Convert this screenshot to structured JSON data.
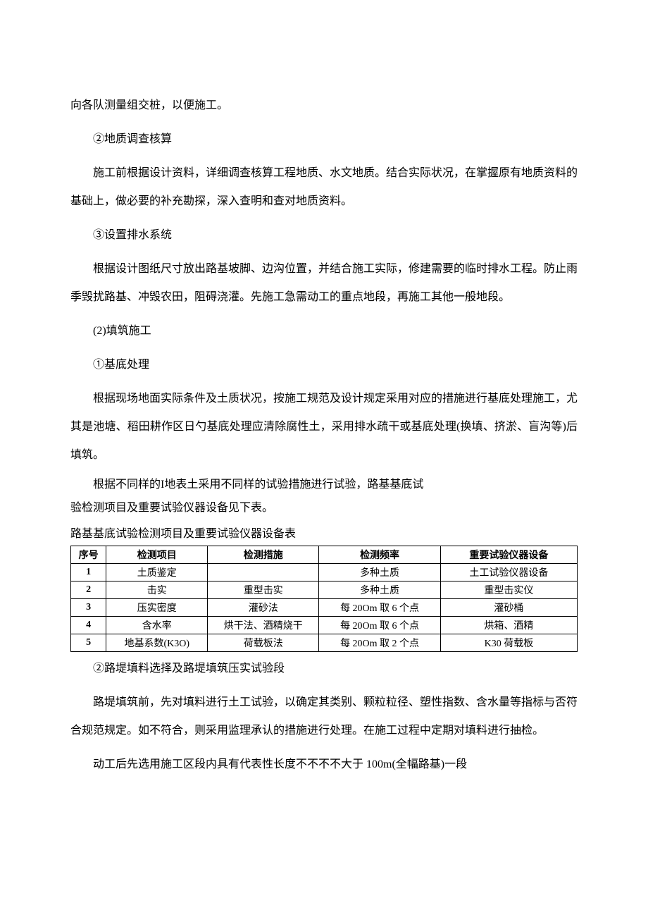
{
  "paragraphs": {
    "p1": "向各队测量组交桩，以便施工。",
    "p2": "②地质调查核算",
    "p3": "施工前根据设计资料，详细调查核算工程地质、水文地质。结合实际状况，在掌握原有地质资料的基础上，做必要的补充勘探，深入查明和查对地质资料。",
    "p4": "③设置排水系统",
    "p5": "根据设计图纸尺寸放出路基坡脚、边沟位置，并结合施工实际，修建需要的临时排水工程。防止雨季毁扰路基、冲毁农田，阻碍浇灌。先施工急需动工的重点地段，再施工其他一般地段。",
    "p6": "(2)填筑施工",
    "p7": "①基底处理",
    "p8": "根据现场地面实际条件及土质状况，按施工规范及设计规定采用对应的措施进行基底处理施工，尤其是池塘、稻田耕作区日勺基底处理应清除腐性土，采用排水疏干或基底处理(换填、挤淤、盲沟等)后填筑。",
    "p9a": "根据不同样的I地表土采用不同样的试验措施进行试验，路基基底试",
    "p9b": "验检测项目及重要试验仪器设备见下表。",
    "table_title": "路基基底试验检测项目及重要试验仪器设备表",
    "p10": "②路堤填料选择及路堤填筑压实试验段",
    "p11": "路堤填筑前，先对填料进行土工试验，以确定其类别、颗粒粒径、塑性指数、含水量等指标与否符合规范规定。如不符合，则采用监理承认的措施进行处理。在施工过程中定期对填料进行抽检。",
    "p12": "动工后先选用施工区段内具有代表性长度不不不不大于 100m(全幅路基)一段"
  },
  "table": {
    "headers": {
      "seq": "序号",
      "item": "检测项目",
      "method": "检测措施",
      "freq": "检测频率",
      "equip": "重要试验仪器设备"
    },
    "rows": [
      {
        "seq": "1",
        "item": "土质鉴定",
        "method": "",
        "freq": "多种土质",
        "equip": "土工试验仪器设备"
      },
      {
        "seq": "2",
        "item": "击实",
        "method": "重型击实",
        "freq": "多种土质",
        "equip": "重型击实仪"
      },
      {
        "seq": "3",
        "item": "压实密度",
        "method": "灌砂法",
        "freq": "每 20Om 取 6 个点",
        "equip": "灌砂桶"
      },
      {
        "seq": "4",
        "item": "含水率",
        "method": "烘干法、酒精烧干",
        "freq": "每 20Om 取 6 个点",
        "equip": "烘箱、酒精"
      },
      {
        "seq": "5",
        "item": "地基系数(K3O)",
        "method": "荷载板法",
        "freq": "每 20Om 取 2 个点",
        "equip": "K30 荷载板"
      }
    ]
  }
}
